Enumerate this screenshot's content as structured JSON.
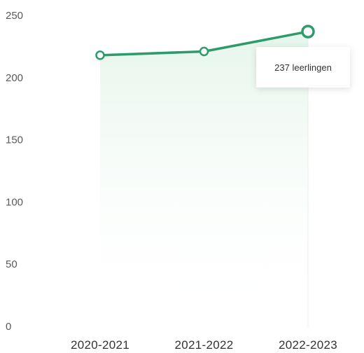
{
  "chart_data": {
    "type": "line",
    "categories": [
      "2020-2021",
      "2021-2022",
      "2022-2023"
    ],
    "series": [
      {
        "values": [
          218,
          221,
          237
        ]
      }
    ],
    "ylim": [
      0,
      250
    ],
    "yticks": [
      "250",
      "200",
      "150",
      "100",
      "50",
      "0"
    ],
    "ytick_values": [
      250,
      200,
      150,
      100,
      50,
      0
    ],
    "grid": false,
    "line_color": "#2e9b6b",
    "area_fill_color": "#e8f6ee",
    "hover_index": 2
  },
  "tooltip": {
    "text": "237 leerlingen"
  }
}
